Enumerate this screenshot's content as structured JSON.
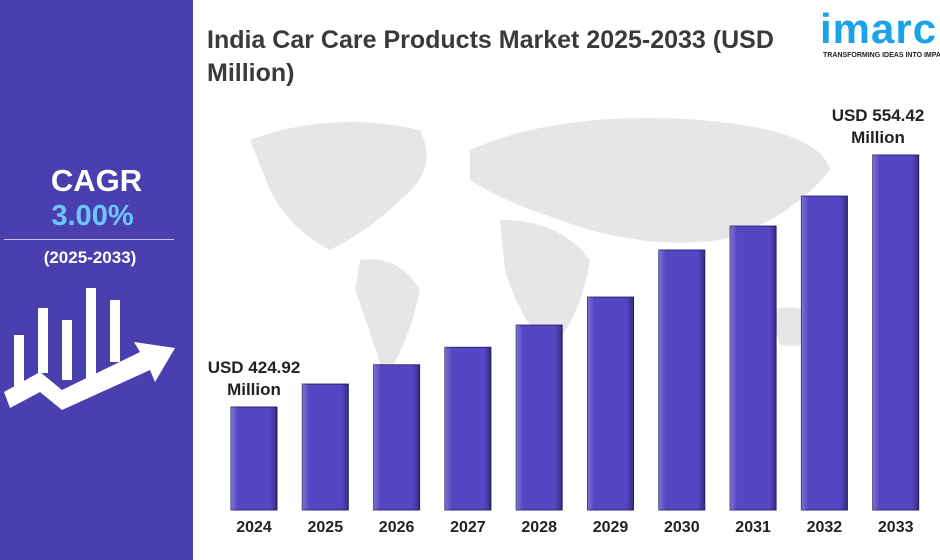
{
  "chart_data": {
    "type": "bar",
    "title": "India Car Care Products Market 2025-2033 (USD Million)",
    "categories": [
      "2024",
      "2025",
      "2026",
      "2027",
      "2028",
      "2029",
      "2030",
      "2031",
      "2032",
      "2033"
    ],
    "values": [
      424.92,
      436.7,
      446.6,
      455.6,
      467.0,
      481.4,
      505.6,
      517.9,
      533.3,
      554.42
    ],
    "value_labels": [
      "USD 424.92 Million",
      null,
      null,
      null,
      null,
      null,
      null,
      null,
      null,
      "USD 554.42 Million"
    ],
    "color": "#5546c4"
  },
  "sidebar": {
    "label": "CAGR",
    "value": "3.00%",
    "period": "(2025-2033)"
  },
  "logo": {
    "name": "imarc",
    "tagline": "TRANSFORMING IDEAS INTO IMPACT"
  }
}
